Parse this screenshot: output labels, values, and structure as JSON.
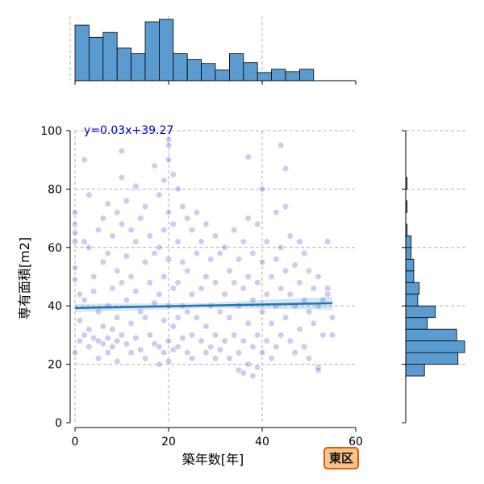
{
  "chart_data": {
    "type": "scatter",
    "title": "",
    "xlabel": "築年数[年]",
    "ylabel": "専有面積[m2]",
    "xlim": [
      0,
      60
    ],
    "ylim": [
      0,
      100
    ],
    "xticks": [
      0,
      20,
      40,
      60
    ],
    "yticks": [
      0,
      20,
      40,
      60,
      80,
      100
    ],
    "grid": true,
    "regression": {
      "slope": 0.03,
      "intercept": 39.27,
      "x_range": [
        0,
        55
      ],
      "label": "y=0.03x+39.27"
    },
    "badge": "東区",
    "colors": {
      "points": "#3333cc",
      "line": "#1f77b4",
      "hist": "#5b9bd0",
      "badge_fill": "#f6c48a",
      "badge_border": "#e85a0c",
      "eq": "#0000cc"
    },
    "points": [
      [
        0,
        24
      ],
      [
        0,
        49
      ],
      [
        0,
        53
      ],
      [
        0,
        62
      ],
      [
        0,
        65
      ],
      [
        0,
        68
      ],
      [
        0,
        72
      ],
      [
        1,
        28
      ],
      [
        1,
        35
      ],
      [
        1,
        44
      ],
      [
        2,
        90
      ],
      [
        2,
        62
      ],
      [
        2,
        42
      ],
      [
        2,
        30
      ],
      [
        3,
        78
      ],
      [
        3,
        60
      ],
      [
        3,
        26
      ],
      [
        3,
        32
      ],
      [
        4,
        29
      ],
      [
        4,
        45
      ],
      [
        4,
        50
      ],
      [
        5,
        66
      ],
      [
        5,
        38
      ],
      [
        5,
        28
      ],
      [
        5,
        22
      ],
      [
        6,
        70
      ],
      [
        6,
        55
      ],
      [
        6,
        33
      ],
      [
        6,
        27
      ],
      [
        7,
        75
      ],
      [
        7,
        58
      ],
      [
        7,
        40
      ],
      [
        7,
        29
      ],
      [
        7,
        24
      ],
      [
        8,
        64
      ],
      [
        8,
        46
      ],
      [
        8,
        32
      ],
      [
        8,
        26
      ],
      [
        9,
        72
      ],
      [
        9,
        52
      ],
      [
        9,
        36
      ],
      [
        9,
        28
      ],
      [
        9,
        21
      ],
      [
        10,
        93
      ],
      [
        10,
        84
      ],
      [
        10,
        68
      ],
      [
        10,
        48
      ],
      [
        10,
        30
      ],
      [
        11,
        76
      ],
      [
        11,
        57
      ],
      [
        11,
        42
      ],
      [
        11,
        27
      ],
      [
        12,
        66
      ],
      [
        12,
        50
      ],
      [
        12,
        34
      ],
      [
        12,
        24
      ],
      [
        13,
        81
      ],
      [
        13,
        62
      ],
      [
        13,
        45
      ],
      [
        13,
        29
      ],
      [
        14,
        70
      ],
      [
        14,
        38
      ],
      [
        14,
        25
      ],
      [
        15,
        74
      ],
      [
        15,
        55
      ],
      [
        15,
        36
      ],
      [
        15,
        22
      ],
      [
        16,
        64
      ],
      [
        16,
        48
      ],
      [
        16,
        30
      ],
      [
        17,
        88
      ],
      [
        17,
        58
      ],
      [
        17,
        41
      ],
      [
        17,
        27
      ],
      [
        18,
        78
      ],
      [
        18,
        60
      ],
      [
        18,
        44
      ],
      [
        18,
        26
      ],
      [
        18,
        20
      ],
      [
        19,
        83
      ],
      [
        19,
        66
      ],
      [
        19,
        50
      ],
      [
        19,
        35
      ],
      [
        19,
        24
      ],
      [
        20,
        97
      ],
      [
        20,
        95
      ],
      [
        20,
        90
      ],
      [
        20,
        72
      ],
      [
        20,
        56
      ],
      [
        20,
        40
      ],
      [
        20,
        28
      ],
      [
        20,
        21
      ],
      [
        21,
        85
      ],
      [
        21,
        68
      ],
      [
        21,
        46
      ],
      [
        21,
        33
      ],
      [
        21,
        25
      ],
      [
        22,
        80
      ],
      [
        22,
        62
      ],
      [
        22,
        48
      ],
      [
        22,
        36
      ],
      [
        22,
        26
      ],
      [
        23,
        74
      ],
      [
        23,
        55
      ],
      [
        23,
        40
      ],
      [
        23,
        29
      ],
      [
        24,
        70
      ],
      [
        24,
        52
      ],
      [
        24,
        38
      ],
      [
        24,
        24
      ],
      [
        25,
        66
      ],
      [
        25,
        44
      ],
      [
        25,
        30
      ],
      [
        25,
        22
      ],
      [
        26,
        72
      ],
      [
        26,
        58
      ],
      [
        26,
        36
      ],
      [
        27,
        62
      ],
      [
        27,
        46
      ],
      [
        27,
        28
      ],
      [
        28,
        68
      ],
      [
        28,
        50
      ],
      [
        28,
        33
      ],
      [
        28,
        24
      ],
      [
        29,
        56
      ],
      [
        29,
        40
      ],
      [
        29,
        26
      ],
      [
        30,
        64
      ],
      [
        30,
        48
      ],
      [
        30,
        30
      ],
      [
        30,
        22
      ],
      [
        31,
        58
      ],
      [
        31,
        38
      ],
      [
        31,
        25
      ],
      [
        32,
        60
      ],
      [
        32,
        44
      ],
      [
        32,
        28
      ],
      [
        33,
        52
      ],
      [
        33,
        36
      ],
      [
        33,
        22
      ],
      [
        34,
        66
      ],
      [
        34,
        48
      ],
      [
        34,
        30
      ],
      [
        35,
        56
      ],
      [
        35,
        40
      ],
      [
        35,
        24
      ],
      [
        35,
        18
      ],
      [
        36,
        62
      ],
      [
        36,
        46
      ],
      [
        36,
        28
      ],
      [
        36,
        17
      ],
      [
        37,
        91
      ],
      [
        37,
        70
      ],
      [
        37,
        50
      ],
      [
        37,
        34
      ],
      [
        37,
        20
      ],
      [
        38,
        58
      ],
      [
        38,
        42
      ],
      [
        38,
        26
      ],
      [
        38,
        16
      ],
      [
        39,
        68
      ],
      [
        39,
        48
      ],
      [
        39,
        30
      ],
      [
        39,
        19
      ],
      [
        40,
        80
      ],
      [
        40,
        55
      ],
      [
        40,
        38
      ],
      [
        40,
        24
      ],
      [
        41,
        62
      ],
      [
        41,
        44
      ],
      [
        41,
        28
      ],
      [
        42,
        50
      ],
      [
        42,
        34
      ],
      [
        42,
        22
      ],
      [
        43,
        72
      ],
      [
        43,
        56
      ],
      [
        43,
        40
      ],
      [
        43,
        26
      ],
      [
        44,
        95
      ],
      [
        44,
        60
      ],
      [
        44,
        46
      ],
      [
        44,
        30
      ],
      [
        45,
        87
      ],
      [
        45,
        74
      ],
      [
        45,
        52
      ],
      [
        45,
        36
      ],
      [
        46,
        64
      ],
      [
        46,
        44
      ],
      [
        46,
        28
      ],
      [
        47,
        54
      ],
      [
        47,
        40
      ],
      [
        47,
        24
      ],
      [
        48,
        62
      ],
      [
        48,
        48
      ],
      [
        48,
        32
      ],
      [
        49,
        58
      ],
      [
        49,
        42
      ],
      [
        49,
        26
      ],
      [
        50,
        52
      ],
      [
        50,
        38
      ],
      [
        50,
        22
      ],
      [
        51,
        46
      ],
      [
        51,
        34
      ],
      [
        52,
        50
      ],
      [
        52,
        40
      ],
      [
        52,
        19
      ],
      [
        52,
        18
      ],
      [
        53,
        42
      ],
      [
        53,
        30
      ],
      [
        54,
        62
      ],
      [
        54,
        46
      ],
      [
        54,
        44
      ],
      [
        55,
        36
      ],
      [
        55,
        30
      ]
    ],
    "hist_x": {
      "bins": [
        0,
        3,
        6,
        9,
        12,
        15,
        18,
        21,
        24,
        27,
        30,
        33,
        36,
        39,
        42,
        45,
        48,
        51,
        54,
        57
      ],
      "counts": [
        68,
        53,
        59,
        40,
        33,
        72,
        75,
        33,
        26,
        21,
        13,
        33,
        22,
        10,
        14,
        11,
        14,
        0,
        0
      ]
    },
    "hist_y": {
      "bins": [
        16,
        20,
        24,
        28,
        32,
        36,
        40,
        44,
        48,
        52,
        56,
        60,
        64,
        68,
        72,
        76,
        80,
        84,
        88,
        92,
        96
      ],
      "counts": [
        14,
        39,
        44,
        38,
        16,
        22,
        9,
        10,
        6,
        6,
        4,
        4,
        1,
        0,
        1,
        0,
        1,
        0,
        0,
        0,
        0
      ]
    }
  }
}
